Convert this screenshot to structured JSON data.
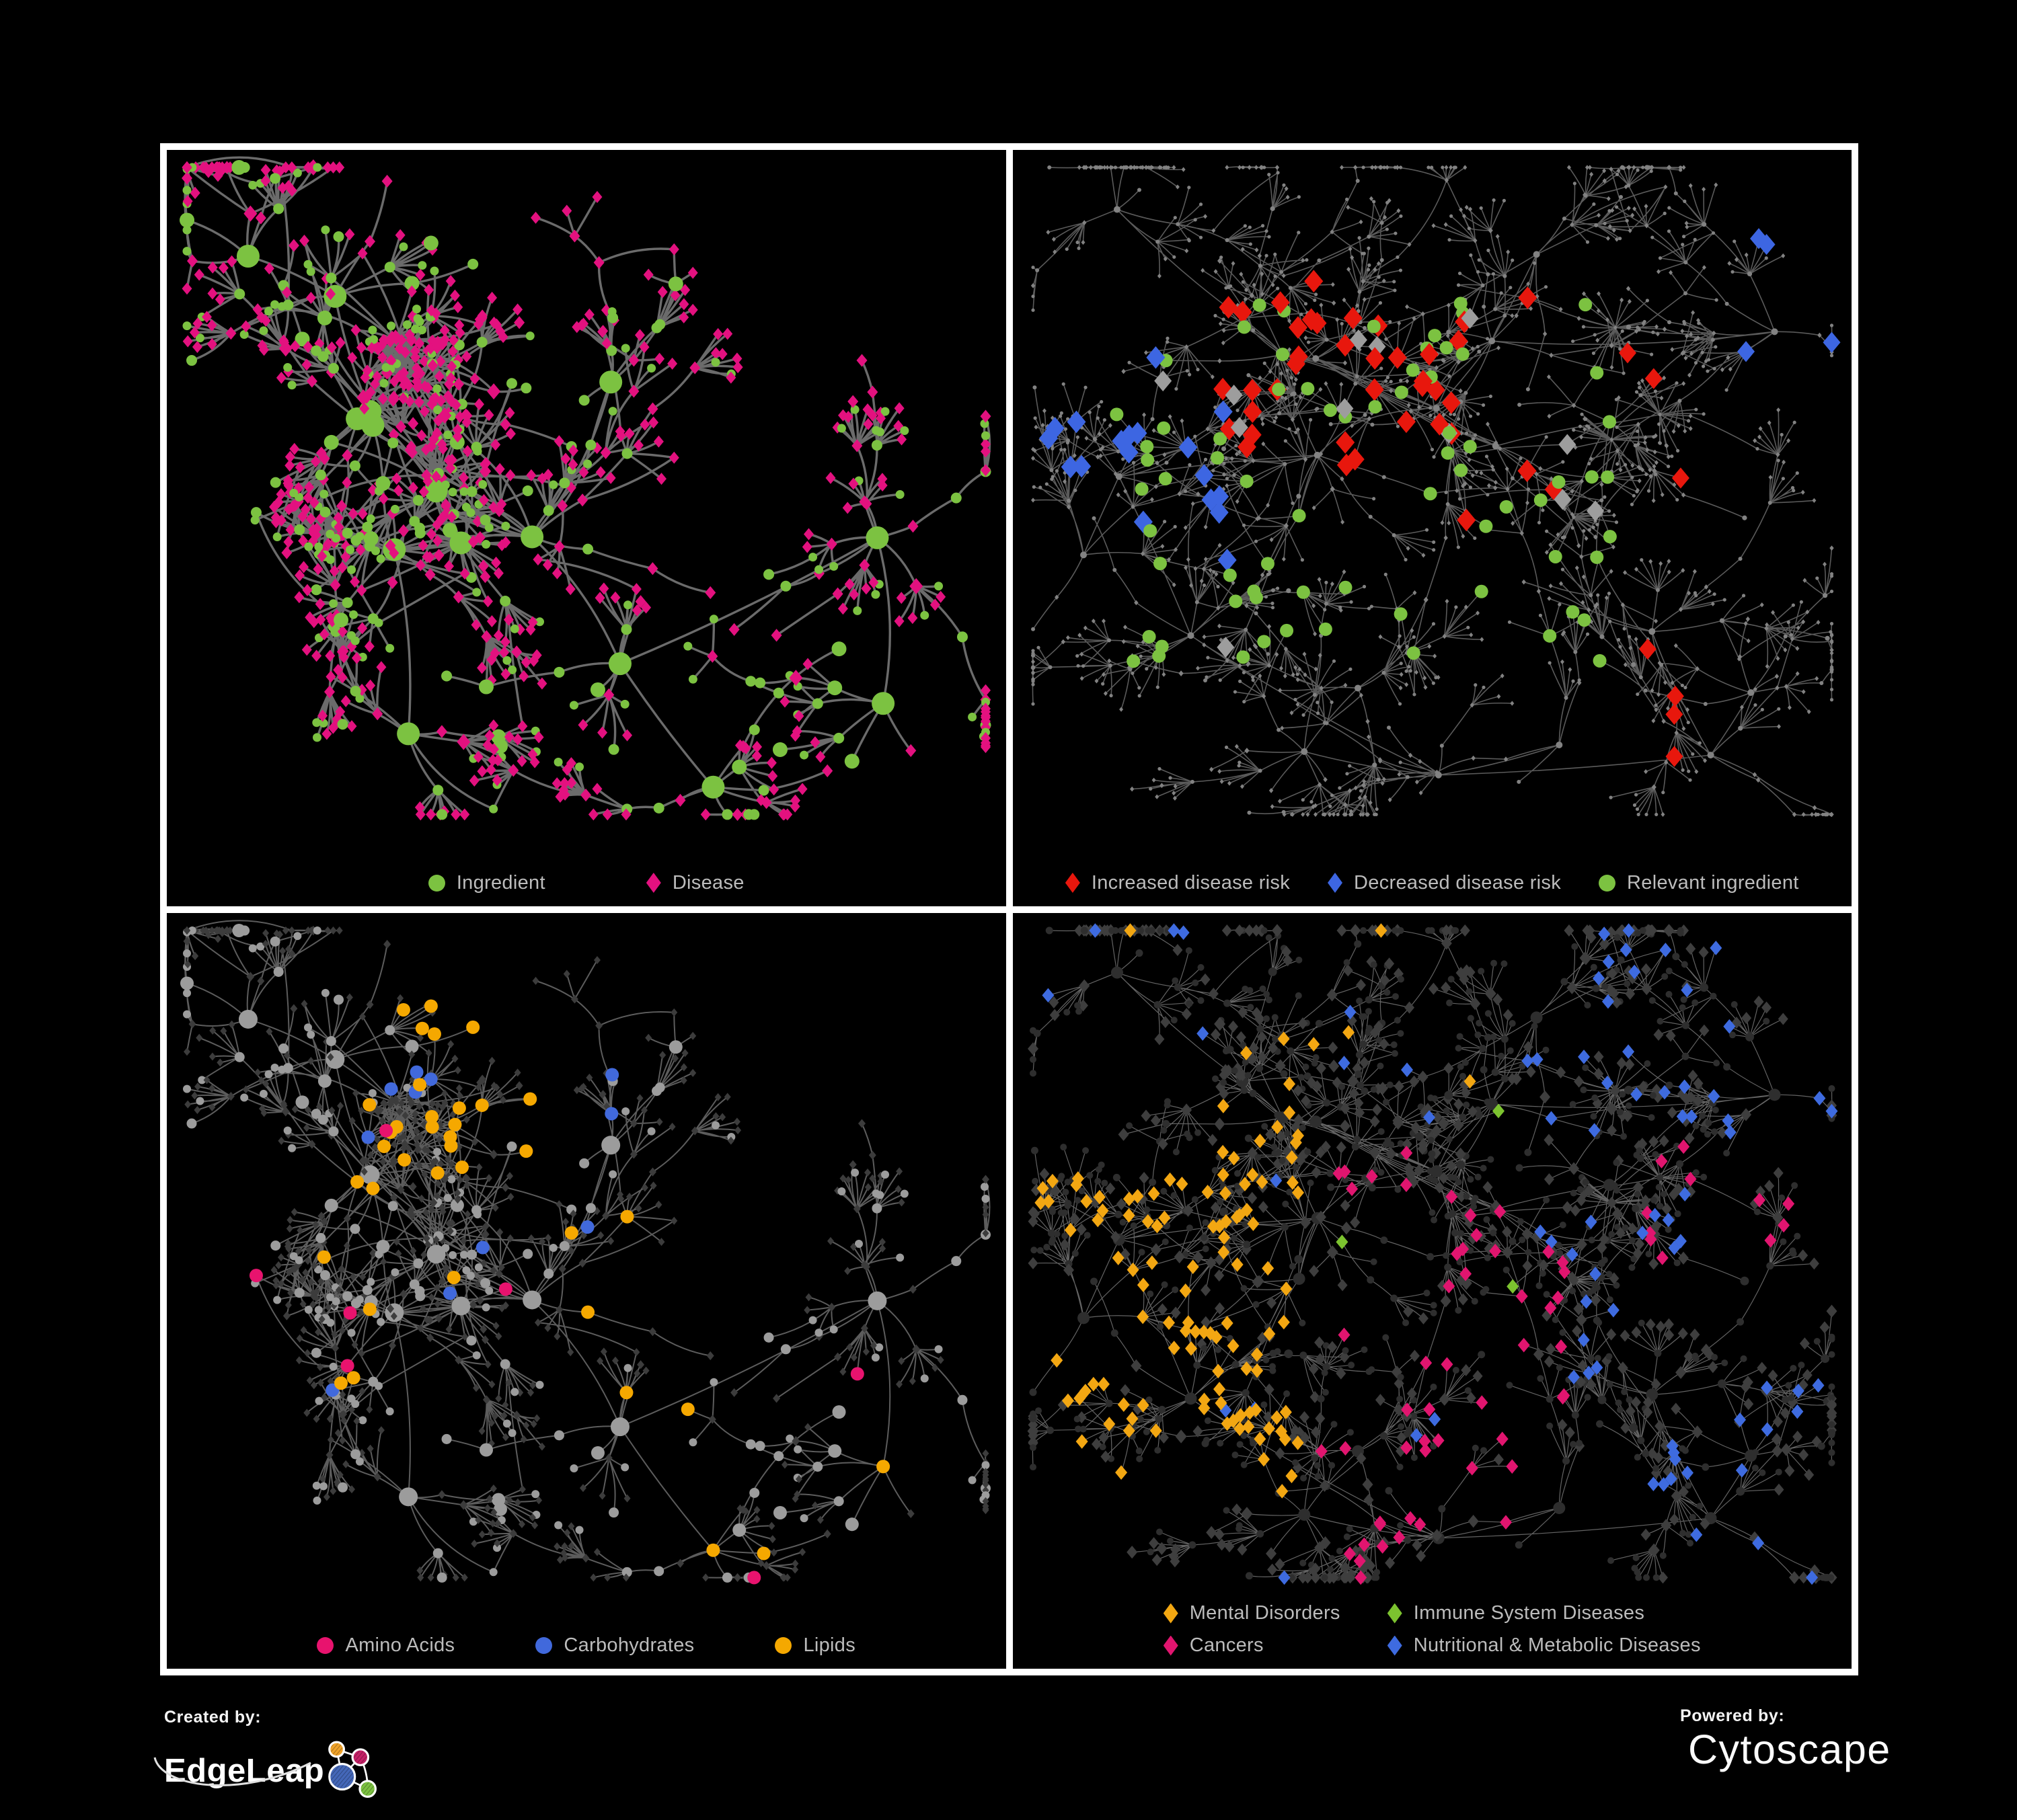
{
  "figure": {
    "background": "#000000",
    "frame_color": "#ffffff",
    "legend_text_color": "#bcbcbc"
  },
  "graphs": {
    "A": {
      "seed": 7,
      "hubs": 15,
      "coreHubs": 5,
      "core": [
        0.34,
        0.46,
        0.2,
        0.26
      ],
      "coreLinks": 6,
      "brMin": 4,
      "brMax": 8,
      "segMax": 4,
      "segLen": 78,
      "circProb": 0.5,
      "fanProb": 0.52,
      "fanMin": 3,
      "fanMax": 10,
      "leafLen": 50,
      "leafCirc": 0.22,
      "bursts": 3,
      "cross": 90,
      "crossDist": 175,
      "crossXmax": 0.62
    },
    "B": {
      "seed": 23,
      "hubs": 22,
      "coreHubs": 6,
      "core": [
        0.46,
        0.4,
        0.34,
        0.3
      ],
      "coreLinks": 5,
      "brMin": 4,
      "brMax": 7,
      "segMax": 5,
      "segLen": 72,
      "circProb": 0.5,
      "fanProb": 0.5,
      "fanMin": 3,
      "fanMax": 9,
      "leafLen": 46,
      "leafCirc": 0.45,
      "bursts": 4,
      "cross": 55,
      "crossDist": 150,
      "crossXmax": 1
    }
  },
  "panels": [
    {
      "name": "ingredient-disease",
      "legend_columns": 1,
      "legend_gap": 150,
      "legend": [
        {
          "shape": "circle",
          "color": "#7cc241",
          "label": "Ingredient"
        },
        {
          "shape": "diamond",
          "color": "#e3117f",
          "label": "Disease"
        }
      ],
      "net": {
        "graph": "A",
        "seed": 101,
        "edge": {
          "color": "#6b6b6b",
          "width": 3.4,
          "opacity": 1,
          "curve": 1
        },
        "circle": {
          "color": "#7cc241",
          "r": [
            6.5,
            8,
            11,
            17
          ]
        },
        "diamond": {
          "color": "#e3117f",
          "r": [
            7.5,
            8,
            10,
            11
          ]
        },
        "rules": []
      }
    },
    {
      "name": "disease-risk",
      "legend_columns": 1,
      "legend_gap": 56,
      "legend": [
        {
          "shape": "diamond",
          "color": "#e8170d",
          "label": "Increased disease risk"
        },
        {
          "shape": "diamond",
          "color": "#3d66e2",
          "label": "Decreased disease risk"
        },
        {
          "shape": "circle",
          "color": "#7cc241",
          "label": "Relevant ingredient"
        }
      ],
      "net": {
        "graph": "B",
        "seed": 202,
        "edge": {
          "color": "#5f5f5f",
          "width": 1.6,
          "opacity": 0.95,
          "curve": 0.6
        },
        "circle": {
          "color": "#828282",
          "r": [
            2.6,
            3,
            3.6,
            5
          ]
        },
        "diamond": {
          "color": "#828282",
          "r": [
            3,
            3.2,
            3.6,
            4.2
          ]
        },
        "rules": [
          {
            "t": "d",
            "color": "#e8170d",
            "r": 14,
            "zone": [
              0.25,
              0.16,
              0.62,
              0.5
            ],
            "p": 0.2
          },
          {
            "t": "d",
            "color": "#e8170d",
            "r": 13,
            "zone": [
              0.62,
              0.2,
              0.8,
              0.45
            ],
            "p": 0.08
          },
          {
            "t": "d",
            "color": "#e8170d",
            "r": 13,
            "zone": [
              0.7,
              0.65,
              0.95,
              0.85
            ],
            "p": 0.08
          },
          {
            "t": "d",
            "color": "#3d66e2",
            "r": 14,
            "zone": [
              0.04,
              0.26,
              0.26,
              0.56
            ],
            "p": 0.2
          },
          {
            "t": "d",
            "color": "#3d66e2",
            "r": 13,
            "zone": [
              0.86,
              0.1,
              1.0,
              0.28
            ],
            "p": 0.3
          },
          {
            "t": "d",
            "color": "#9d9d9d",
            "r": 13,
            "zone": [
              0.15,
              0.2,
              0.7,
              0.72
            ],
            "p": 0.035
          },
          {
            "t": "c",
            "color": "#7cc241",
            "r": 10,
            "zone": [
              0.12,
              0.2,
              0.72,
              0.68
            ],
            "p": 0.2
          }
        ]
      }
    },
    {
      "name": "nutrient-classes",
      "legend_columns": 1,
      "legend_gap": 120,
      "legend": [
        {
          "shape": "circle",
          "color": "#e8136e",
          "label": "Amino Acids"
        },
        {
          "shape": "circle",
          "color": "#4169dc",
          "label": "Carbohydrates"
        },
        {
          "shape": "circle",
          "color": "#f5a800",
          "label": "Lipids"
        }
      ],
      "net": {
        "graph": "A",
        "seed": 303,
        "edge": {
          "color": "#9a9a9a",
          "width": 2,
          "opacity": 0.6,
          "curve": 1
        },
        "circle": {
          "color": "#9c9c9c",
          "r": [
            6,
            7.5,
            10,
            14
          ]
        },
        "diamond": {
          "color": "#3c3c3c",
          "r": [
            5,
            5.5,
            6,
            7
          ]
        },
        "rules": [
          {
            "t": "c",
            "color": "#f5a800",
            "r": 10,
            "zone": [
              0.22,
              0.1,
              0.46,
              0.36
            ],
            "p": 0.55
          },
          {
            "t": "c",
            "color": "#4169dc",
            "r": 10,
            "zone": [
              0.22,
              0.1,
              0.46,
              0.36
            ],
            "p": 0.16
          },
          {
            "t": "c",
            "color": "#f5a800",
            "r": 10,
            "zone": [
              0.1,
              0.36,
              0.6,
              0.72
            ],
            "p": 0.1
          },
          {
            "t": "c",
            "color": "#f5a800",
            "r": 10,
            "zone": [
              0.6,
              0.55,
              0.95,
              0.85
            ],
            "p": 0.08
          },
          {
            "t": "c",
            "color": "#e8136e",
            "r": 10,
            "zone": null,
            "p": 0.05
          },
          {
            "t": "c",
            "color": "#4169dc",
            "r": 10,
            "zone": null,
            "p": 0.02
          }
        ]
      }
    },
    {
      "name": "disease-categories",
      "legend_columns": 2,
      "legend_gap": 70,
      "legend": [
        {
          "shape": "diamond",
          "color": "#f3a712",
          "label": "Mental Disorders"
        },
        {
          "shape": "diamond",
          "color": "#7cc32f",
          "label": "Immune System Diseases"
        },
        {
          "shape": "diamond",
          "color": "#e1156f",
          "label": "Cancers"
        },
        {
          "shape": "diamond",
          "color": "#3e6be0",
          "label": "Nutritional & Metabolic Diseases"
        }
      ],
      "net": {
        "graph": "B",
        "seed": 404,
        "edge": {
          "color": "#8d8d8d",
          "width": 1.2,
          "opacity": 0.7,
          "curve": 0.6
        },
        "circle": {
          "color": "#2e2e2e",
          "r": [
            5,
            5.5,
            6.5,
            9
          ]
        },
        "diamond": {
          "color": "#3e3e3e",
          "r": [
            7.5,
            8,
            8.5,
            9
          ]
        },
        "rules": [
          {
            "t": "d",
            "color": "#f3a712",
            "r": 9,
            "zone": [
              0.03,
              0.24,
              0.34,
              0.78
            ],
            "p": 0.6
          },
          {
            "t": "d",
            "color": "#f3a712",
            "r": 9,
            "zone": [
              0.1,
              0.02,
              0.55,
              0.24
            ],
            "p": 0.1
          },
          {
            "t": "d",
            "color": "#e1156f",
            "r": 9,
            "zone": [
              0.36,
              0.3,
              0.66,
              0.88
            ],
            "p": 0.32
          },
          {
            "t": "d",
            "color": "#e1156f",
            "r": 9,
            "zone": [
              0.75,
              0.3,
              0.98,
              0.5
            ],
            "p": 0.18
          },
          {
            "t": "d",
            "color": "#3e6be0",
            "r": 9,
            "zone": [
              0.6,
              0.04,
              1.0,
              0.98
            ],
            "p": 0.18
          },
          {
            "t": "d",
            "color": "#3e6be0",
            "r": 9,
            "zone": null,
            "p": 0.05
          },
          {
            "t": "d",
            "color": "#7cc32f",
            "r": 9,
            "zone": [
              0.38,
              0.26,
              0.64,
              0.7
            ],
            "p": 0.05
          }
        ]
      }
    }
  ],
  "footer": {
    "created_by_label": "Created by:",
    "brand_name": "EdgeLeap",
    "powered_by_label": "Powered by:",
    "engine_name": "Cytoscape",
    "edgeleap_logo": {
      "orange": "#f0a32a",
      "magenta": "#c42167",
      "blue": "#4467b8",
      "green": "#7cc141",
      "link": "#ffffff",
      "swoosh": "#e0e0e0"
    },
    "cytoscape_logo": {
      "orange": "#ef8a1c"
    }
  }
}
